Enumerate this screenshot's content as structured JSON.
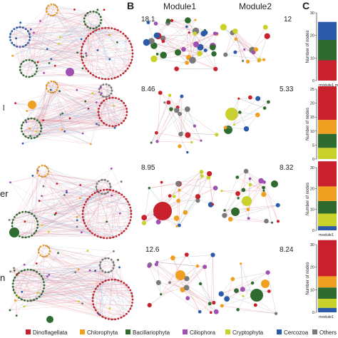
{
  "panels": {
    "b_label": "B",
    "c_label": "C"
  },
  "columns": {
    "module1": "Module1",
    "module2": "Module2"
  },
  "row_labels": [
    "",
    "l",
    "er",
    "n"
  ],
  "rows": [
    {
      "m1_value": "18.1",
      "m2_value": "12"
    },
    {
      "m1_value": "8.46",
      "m2_value": "5.33"
    },
    {
      "m1_value": "8.95",
      "m2_value": "8.32"
    },
    {
      "m1_value": "12.6",
      "m2_value": "8.24"
    }
  ],
  "bar_axis": {
    "ylabel": "Number of nodes",
    "ticks_row1": [
      "30",
      "20",
      "10",
      "0"
    ],
    "ticks_row2": [
      "25",
      "20",
      "15",
      "10",
      "5",
      "0"
    ],
    "ticks_row3": [
      "30",
      "20",
      "10",
      "0"
    ],
    "ticks_row4": [
      "30",
      "20",
      "10",
      "0"
    ],
    "xlabel_row1": "module1 m",
    "xlabel_row2": "module1",
    "xlabel_row3": "module1",
    "xlabel_row4": "module1"
  },
  "legend": [
    {
      "label": "Dinoflagellata",
      "color": "#c8202c"
    },
    {
      "label": "Chlorophyta",
      "color": "#f0a020"
    },
    {
      "label": "Bacillariophyta",
      "color": "#2f6b2f"
    },
    {
      "label": "Ciliophora",
      "color": "#a050b0"
    },
    {
      "label": "Cryptophyta",
      "color": "#c8d22a"
    },
    {
      "label": "Cercozoa",
      "color": "#2a5aa8"
    },
    {
      "label": "Others",
      "color": "#7a7a7a"
    }
  ],
  "chart_data": [
    {
      "type": "bar",
      "categories": [
        "module1"
      ],
      "ylim": [
        0,
        30
      ],
      "series": [
        {
          "values": [
            9
          ],
          "color": "#c8202c"
        },
        {
          "values": [
            9
          ],
          "color": "#2f6b2f"
        },
        {
          "values": [
            8
          ],
          "color": "#2a5aa8"
        }
      ]
    },
    {
      "type": "bar",
      "categories": [
        "module1"
      ],
      "ylim": [
        0,
        25
      ],
      "series": [
        {
          "values": [
            4
          ],
          "color": "#c8d22a"
        },
        {
          "values": [
            5
          ],
          "color": "#2f6b2f"
        },
        {
          "values": [
            5
          ],
          "color": "#f0a020"
        },
        {
          "values": [
            12
          ],
          "color": "#c8202c"
        }
      ]
    },
    {
      "type": "bar",
      "categories": [
        "module1"
      ],
      "ylim": [
        0,
        30
      ],
      "series": [
        {
          "values": [
            2
          ],
          "color": "#2a5aa8"
        },
        {
          "values": [
            6
          ],
          "color": "#c8d22a"
        },
        {
          "values": [
            6
          ],
          "color": "#2f6b2f"
        },
        {
          "values": [
            7
          ],
          "color": "#f0a020"
        },
        {
          "values": [
            12
          ],
          "color": "#c8202c"
        }
      ]
    },
    {
      "type": "bar",
      "categories": [
        "module1"
      ],
      "ylim": [
        0,
        30
      ],
      "series": [
        {
          "values": [
            2
          ],
          "color": "#2a5aa8"
        },
        {
          "values": [
            4
          ],
          "color": "#c8d22a"
        },
        {
          "values": [
            5
          ],
          "color": "#2f6b2f"
        },
        {
          "values": [
            5
          ],
          "color": "#f0a020"
        },
        {
          "values": [
            16
          ],
          "color": "#c8202c"
        }
      ]
    }
  ]
}
